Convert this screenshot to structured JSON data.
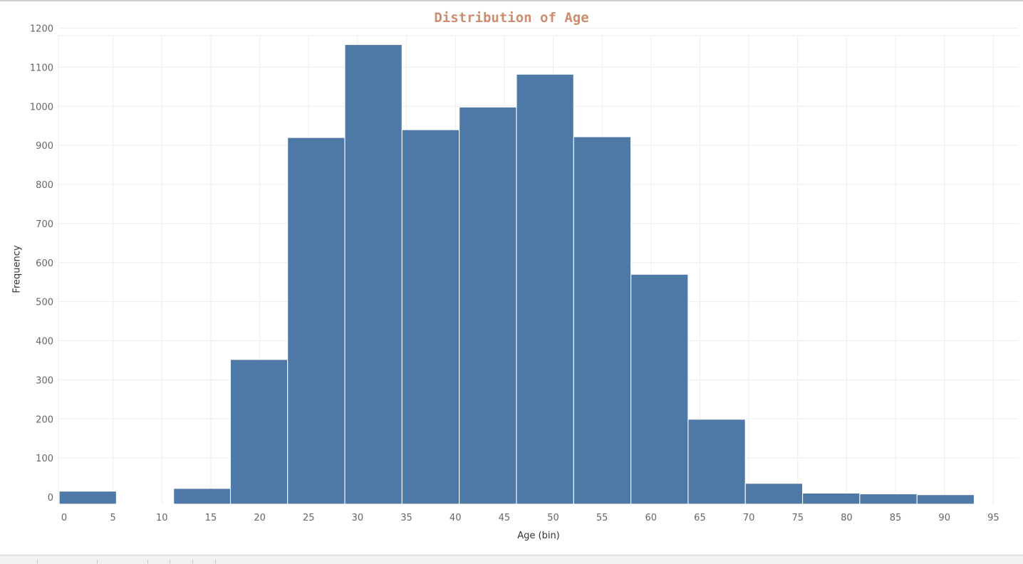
{
  "chart_data": {
    "type": "bar",
    "title": "Distribution of Age",
    "xlabel": "Age (bin)",
    "ylabel": "Frequency",
    "x_ticks": [
      0,
      5,
      10,
      15,
      20,
      25,
      30,
      35,
      40,
      45,
      50,
      55,
      60,
      65,
      70,
      75,
      80,
      85,
      90,
      95
    ],
    "y_ticks": [
      0,
      100,
      200,
      300,
      400,
      500,
      600,
      700,
      800,
      900,
      1000,
      1100,
      1200
    ],
    "ylim": [
      0,
      1200
    ],
    "bin_width": 5.84,
    "bins": [
      {
        "start": -0.5,
        "value": 15
      },
      {
        "start": 11.2,
        "value": 22
      },
      {
        "start": 17.0,
        "value": 352
      },
      {
        "start": 22.85,
        "value": 920
      },
      {
        "start": 28.7,
        "value": 1158
      },
      {
        "start": 34.55,
        "value": 940
      },
      {
        "start": 40.4,
        "value": 998
      },
      {
        "start": 46.25,
        "value": 1082
      },
      {
        "start": 52.1,
        "value": 922
      },
      {
        "start": 57.95,
        "value": 570
      },
      {
        "start": 63.8,
        "value": 199
      },
      {
        "start": 69.65,
        "value": 35
      },
      {
        "start": 75.5,
        "value": 10
      },
      {
        "start": 81.35,
        "value": 8
      },
      {
        "start": 87.2,
        "value": 6
      }
    ],
    "bar_color": "#4e78a6",
    "grid": true,
    "legend": "none"
  },
  "colors": {
    "title": "#cf8c6e",
    "bar": "#4e78a6",
    "grid": "#ececec",
    "tick_text": "#666666"
  }
}
